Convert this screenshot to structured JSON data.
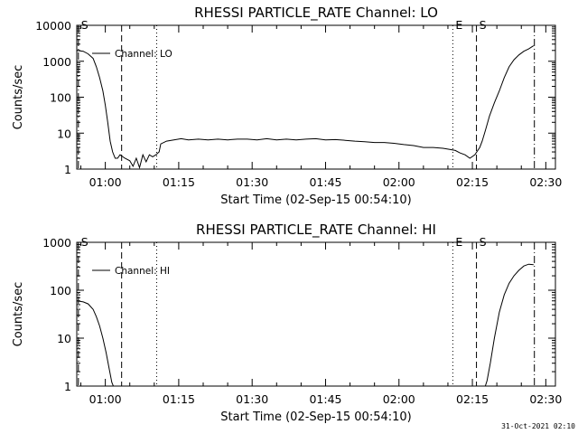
{
  "chart_data": [
    {
      "type": "line",
      "title": "RHESSI PARTICLE_RATE Channel: LO",
      "xlabel": "Start Time (02-Sep-15 00:54:10)",
      "ylabel": "Counts/sec",
      "yscale": "log",
      "ylim": [
        1,
        10000
      ],
      "xlim_minutes_since_start": [
        0,
        97.8
      ],
      "xticks": [
        "01:00",
        "01:15",
        "01:30",
        "01:45",
        "02:00",
        "02:15",
        "02:30"
      ],
      "yticks": [
        "1",
        "10",
        "100",
        "1000",
        "10000"
      ],
      "grid": false,
      "legend": {
        "label": "Channel: LO",
        "position": "top-left"
      },
      "markers": [
        {
          "label": "S",
          "time": "00:54:30",
          "style": "dot-dash"
        },
        {
          "label": "",
          "time": "01:03:20",
          "style": "dashed"
        },
        {
          "label": "",
          "time": "01:10:30",
          "style": "dotted"
        },
        {
          "label": "E",
          "time": "02:11:00",
          "style": "dotted"
        },
        {
          "label": "S",
          "time": "02:15:50",
          "style": "dashed"
        },
        {
          "label": "",
          "time": "02:27:40",
          "style": "dot-dash"
        }
      ],
      "series": [
        {
          "name": "Channel: LO",
          "x": [
            "00:54:10",
            "00:55:30",
            "00:56:30",
            "00:57:30",
            "00:58:10",
            "00:58:50",
            "00:59:30",
            "01:00:00",
            "01:00:30",
            "01:01:00",
            "01:01:30",
            "01:02:00",
            "01:02:30",
            "01:03:00",
            "01:04:00",
            "01:05:00",
            "01:05:40",
            "01:06:20",
            "01:07:00",
            "01:07:40",
            "01:08:20",
            "01:09:00",
            "01:09:40",
            "01:10:20",
            "01:11:00",
            "01:11:20",
            "01:12:30",
            "01:14:00",
            "01:15:30",
            "01:17:00",
            "01:19:00",
            "01:21:00",
            "01:23:00",
            "01:25:00",
            "01:27:00",
            "01:29:00",
            "01:31:00",
            "01:33:00",
            "01:35:00",
            "01:37:00",
            "01:39:00",
            "01:41:00",
            "01:43:00",
            "01:45:00",
            "01:47:00",
            "01:49:00",
            "01:51:00",
            "01:53:00",
            "01:55:00",
            "01:57:00",
            "01:59:00",
            "02:01:00",
            "02:03:00",
            "02:05:00",
            "02:07:00",
            "02:09:00",
            "02:10:30",
            "02:11:30",
            "02:12:30",
            "02:13:30",
            "02:14:30",
            "02:15:30",
            "02:16:30",
            "02:17:00",
            "02:17:40",
            "02:18:30",
            "02:19:30",
            "02:20:30",
            "02:21:30",
            "02:22:30",
            "02:23:30",
            "02:24:30",
            "02:25:30",
            "02:26:30",
            "02:27:30"
          ],
          "y": [
            2000,
            1900,
            1600,
            1200,
            700,
            350,
            150,
            60,
            20,
            6,
            3,
            2,
            2,
            2.5,
            2,
            1.7,
            1.2,
            2,
            1.1,
            2.5,
            1.6,
            2.5,
            2.2,
            2.5,
            3,
            5,
            6,
            6.5,
            7,
            6.5,
            6.8,
            6.5,
            6.8,
            6.5,
            6.8,
            6.8,
            6.5,
            7,
            6.5,
            6.8,
            6.5,
            6.8,
            7,
            6.5,
            6.6,
            6.3,
            6,
            5.8,
            5.5,
            5.5,
            5.2,
            4.8,
            4.5,
            4,
            4,
            3.8,
            3.5,
            3.3,
            2.8,
            2.5,
            2,
            2.5,
            4,
            6,
            12,
            30,
            70,
            150,
            350,
            700,
            1100,
            1500,
            1900,
            2200,
            2700
          ]
        }
      ]
    },
    {
      "type": "line",
      "title": "RHESSI PARTICLE_RATE Channel: HI",
      "xlabel": "Start Time (02-Sep-15 00:54:10)",
      "ylabel": "Counts/sec",
      "yscale": "log",
      "ylim": [
        1,
        1000
      ],
      "xlim_minutes_since_start": [
        0,
        97.8
      ],
      "xticks": [
        "01:00",
        "01:15",
        "01:30",
        "01:45",
        "02:00",
        "02:15",
        "02:30"
      ],
      "yticks": [
        "1",
        "10",
        "100",
        "1000"
      ],
      "grid": false,
      "legend": {
        "label": "Channel: HI",
        "position": "top-left"
      },
      "markers": [
        {
          "label": "S",
          "time": "00:54:30",
          "style": "dot-dash"
        },
        {
          "label": "",
          "time": "01:03:20",
          "style": "dashed"
        },
        {
          "label": "",
          "time": "01:10:30",
          "style": "dotted"
        },
        {
          "label": "E",
          "time": "02:11:00",
          "style": "dotted"
        },
        {
          "label": "S",
          "time": "02:15:50",
          "style": "dashed"
        },
        {
          "label": "",
          "time": "02:27:40",
          "style": "dot-dash"
        }
      ],
      "series": [
        {
          "name": "Channel: HI",
          "x": [
            "00:54:10",
            "00:55:30",
            "00:56:30",
            "00:57:30",
            "00:58:10",
            "00:58:50",
            "00:59:30",
            "01:00:10",
            "01:00:50",
            "01:01:20",
            "01:01:50",
            "02:17:30",
            "02:18:00",
            "02:18:40",
            "02:19:30",
            "02:20:30",
            "02:21:30",
            "02:22:30",
            "02:23:30",
            "02:24:30",
            "02:25:30",
            "02:26:30",
            "02:27:30"
          ],
          "y": [
            60,
            57,
            52,
            40,
            28,
            18,
            10,
            5,
            2.2,
            1.2,
            0.9,
            0.9,
            1.3,
            3,
            10,
            35,
            80,
            140,
            200,
            260,
            320,
            350,
            340
          ]
        }
      ]
    }
  ],
  "footer": {
    "timestamp": "31-Oct-2021 02:10"
  }
}
